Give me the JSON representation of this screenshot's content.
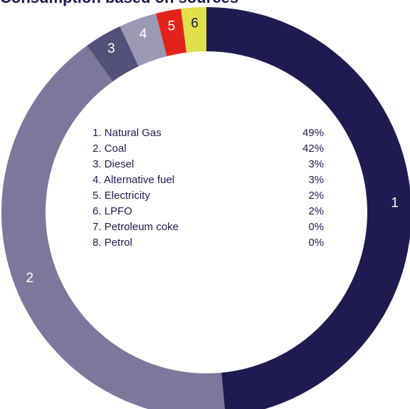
{
  "chart_data": {
    "type": "donut",
    "title": "Consumption based on sources",
    "categories": [
      "1. Natural Gas",
      "2. Coal",
      "3. Diesel",
      "4. Alternative fuel",
      "5. Electricity",
      "6. LPFO",
      "7. Petroleum coke",
      "8. Petrol"
    ],
    "values": [
      49,
      42,
      3,
      3,
      2,
      2,
      0,
      0
    ],
    "value_labels": [
      "49%",
      "42%",
      "3%",
      "3%",
      "2%",
      "2%",
      "0%",
      "0%"
    ],
    "segment_labels": [
      "1",
      "2",
      "3",
      "4",
      "5",
      "6",
      null,
      null
    ],
    "colors": [
      "#1e1b50",
      "#7b789c",
      "#53507a",
      "#9c99b5",
      "#e3231b",
      "#e0e04a",
      "#cccccc",
      "#dddddd"
    ]
  }
}
